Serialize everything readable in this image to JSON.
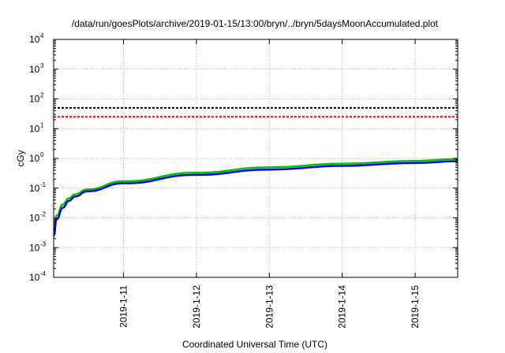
{
  "chart_data": {
    "type": "line",
    "title": "/data/run/goesPlots/archive/2019-01-15/13:00/bryn/../bryn/5daysMoonAccumulated.plot",
    "xlabel": "Coordinated Universal Time (UTC)",
    "ylabel": "cGy",
    "y_scale": "log",
    "ylim": [
      0.0001,
      10000
    ],
    "xlim": [
      "2019-01-10T01:00",
      "2019-01-15T14:00"
    ],
    "x_ticks": [
      "2019-1-11",
      "2019-1-12",
      "2019-1-13",
      "2019-1-14",
      "2019-1-15"
    ],
    "x_tick_dates": [
      "2019-01-11",
      "2019-01-12",
      "2019-01-13",
      "2019-01-14",
      "2019-01-15"
    ],
    "y_ticks": [
      {
        "base": "10",
        "exp": "-4",
        "value": 0.0001
      },
      {
        "base": "10",
        "exp": "-3",
        "value": 0.001
      },
      {
        "base": "10",
        "exp": "-2",
        "value": 0.01
      },
      {
        "base": "10",
        "exp": "-1",
        "value": 0.1
      },
      {
        "base": "10",
        "exp": "0",
        "value": 1
      },
      {
        "base": "10",
        "exp": "1",
        "value": 10
      },
      {
        "base": "10",
        "exp": "2",
        "value": 100
      },
      {
        "base": "10",
        "exp": "3",
        "value": 1000
      },
      {
        "base": "10",
        "exp": "4",
        "value": 10000
      }
    ],
    "grid": true,
    "reference_lines": [
      {
        "value": 50,
        "color": "#000000",
        "style": "dashed"
      },
      {
        "value": 25,
        "color": "#ff0000",
        "style": "dashed"
      }
    ],
    "series": [
      {
        "color": "#00c000",
        "x": [
          "2019-01-10T01:00",
          "2019-01-10T02:00",
          "2019-01-10T04:00",
          "2019-01-10T06:00",
          "2019-01-10T08:00",
          "2019-01-10T12:00",
          "2019-01-11T00:00",
          "2019-01-12T00:00",
          "2019-01-13T00:00",
          "2019-01-14T00:00",
          "2019-01-15T00:00",
          "2019-01-15T14:00"
        ],
        "y": [
          0.0035,
          0.012,
          0.028,
          0.045,
          0.062,
          0.09,
          0.17,
          0.33,
          0.5,
          0.66,
          0.82,
          0.95
        ]
      },
      {
        "color": "#0000ff",
        "x": [
          "2019-01-10T01:00",
          "2019-01-10T02:00",
          "2019-01-10T04:00",
          "2019-01-10T06:00",
          "2019-01-10T08:00",
          "2019-01-10T12:00",
          "2019-01-11T00:00",
          "2019-01-12T00:00",
          "2019-01-13T00:00",
          "2019-01-14T00:00",
          "2019-01-15T00:00",
          "2019-01-15T14:00"
        ],
        "y": [
          0.0025,
          0.009,
          0.022,
          0.037,
          0.052,
          0.078,
          0.145,
          0.28,
          0.42,
          0.56,
          0.7,
          0.8
        ]
      }
    ]
  }
}
